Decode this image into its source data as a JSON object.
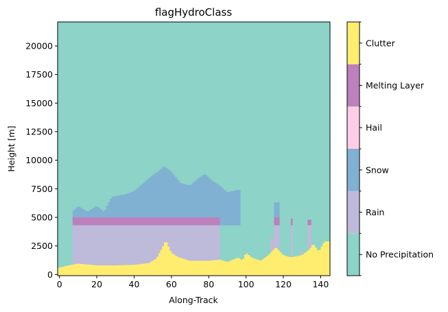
{
  "chart_data": {
    "type": "heatmap",
    "title": "flagHydroClass",
    "xlabel": "Along-Track",
    "ylabel": "Height [m]",
    "xlim": [
      -1,
      145
    ],
    "ylim": [
      -100,
      22100
    ],
    "x_ticks": [
      0,
      20,
      40,
      60,
      80,
      100,
      120,
      140
    ],
    "y_ticks": [
      0,
      2500,
      5000,
      7500,
      10000,
      12500,
      15000,
      17500,
      20000
    ],
    "x_tick_labels": [
      "0",
      "20",
      "40",
      "60",
      "80",
      "100",
      "120",
      "140"
    ],
    "y_tick_labels": [
      "0",
      "2500",
      "5000",
      "7500",
      "10000",
      "12500",
      "15000",
      "17500",
      "20000"
    ],
    "classes": [
      {
        "label": "No Precipitation",
        "color": "#8dd3c7"
      },
      {
        "label": "Rain",
        "color": "#bebada"
      },
      {
        "label": "Snow",
        "color": "#80b1d3"
      },
      {
        "label": "Hail",
        "color": "#fccde5"
      },
      {
        "label": "Melting Layer",
        "color": "#bc80bd"
      },
      {
        "label": "Clutter",
        "color": "#ffed6f"
      }
    ],
    "background_class": "No Precipitation",
    "clutter_top_m": [
      [
        0,
        600
      ],
      [
        5,
        800
      ],
      [
        10,
        950
      ],
      [
        20,
        800
      ],
      [
        30,
        800
      ],
      [
        40,
        850
      ],
      [
        48,
        1000
      ],
      [
        52,
        1400
      ],
      [
        55,
        2300
      ],
      [
        57,
        3000
      ],
      [
        60,
        1900
      ],
      [
        64,
        1500
      ],
      [
        70,
        1200
      ],
      [
        80,
        1200
      ],
      [
        86,
        1300
      ],
      [
        90,
        1100
      ],
      [
        96,
        1500
      ],
      [
        98,
        1200
      ],
      [
        100,
        1900
      ],
      [
        103,
        1500
      ],
      [
        108,
        1200
      ],
      [
        112,
        1700
      ],
      [
        116,
        2400
      ],
      [
        120,
        1700
      ],
      [
        124,
        1500
      ],
      [
        130,
        1700
      ],
      [
        134,
        2200
      ],
      [
        136,
        2700
      ],
      [
        139,
        2000
      ],
      [
        142,
        2900
      ],
      [
        145,
        2900
      ]
    ],
    "snow_top_m": [
      [
        7,
        5500
      ],
      [
        10,
        6000
      ],
      [
        15,
        5500
      ],
      [
        20,
        6000
      ],
      [
        24,
        5500
      ],
      [
        28,
        6800
      ],
      [
        35,
        7000
      ],
      [
        40,
        7300
      ],
      [
        45,
        8000
      ],
      [
        50,
        8700
      ],
      [
        53,
        9000
      ],
      [
        56,
        9500
      ],
      [
        60,
        9000
      ],
      [
        65,
        8000
      ],
      [
        70,
        7800
      ],
      [
        75,
        8500
      ],
      [
        78,
        8800
      ],
      [
        82,
        8200
      ],
      [
        86,
        7800
      ],
      [
        90,
        7200
      ],
      [
        95,
        7400
      ],
      [
        97,
        7400
      ]
    ],
    "snow_extent_x": [
      7,
      97
    ],
    "snow_bottom_beyond_rain_m": 4300,
    "melting_layer_m": [
      4300,
      5000
    ],
    "rain_extent_x": [
      7,
      86
    ],
    "rain_top_m": 4300,
    "shower_cells": [
      {
        "x_range": [
          115,
          118
        ],
        "melting_layer_m": [
          4300,
          5000
        ],
        "rain_top_m": 4300,
        "snow_top_m": 6300
      },
      {
        "x_range": [
          113,
          115
        ],
        "rain_top_m": 3200
      },
      {
        "x_range": [
          124,
          125
        ],
        "melting_layer_m": [
          4300,
          4900
        ],
        "rain_top_m": 4300
      },
      {
        "x_range": [
          129,
          130
        ],
        "rain_top_m": 2200
      },
      {
        "x_range": [
          133,
          135
        ],
        "melting_layer_m": [
          4300,
          4800
        ],
        "rain_top_m": 4300
      }
    ]
  }
}
